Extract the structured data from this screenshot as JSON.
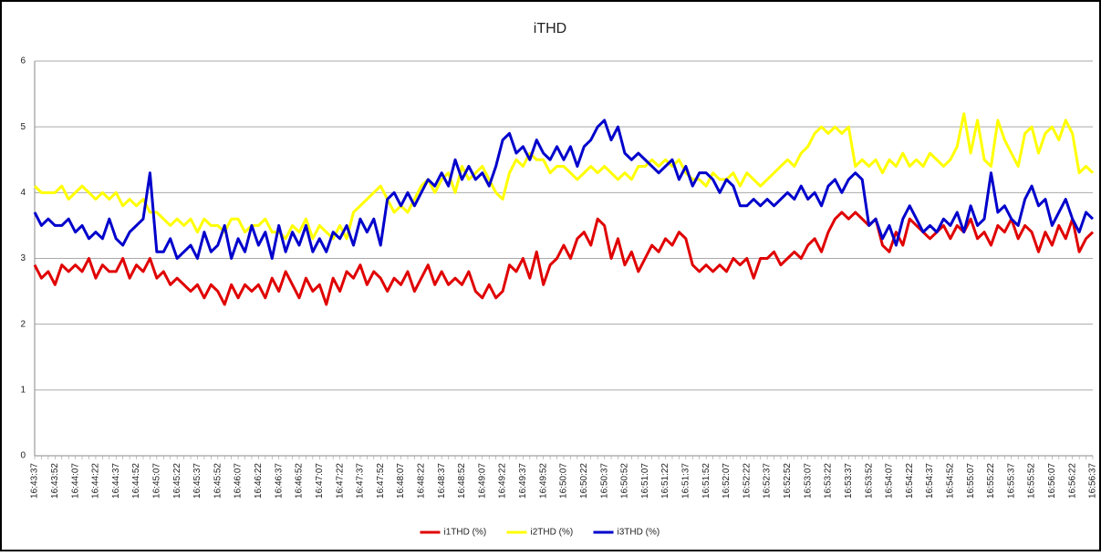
{
  "chart_data": {
    "type": "line",
    "title": "iTHD",
    "categories": [
      "16:43:37",
      null,
      null,
      "16:43:52",
      null,
      null,
      "16:44:07",
      null,
      null,
      "16:44:22",
      null,
      null,
      "16:44:37",
      null,
      null,
      "16:44:52",
      null,
      null,
      "16:45:07",
      null,
      null,
      "16:45:22",
      null,
      null,
      "16:45:37",
      null,
      null,
      "16:45:52",
      null,
      null,
      "16:46:07",
      null,
      null,
      "16:46:22",
      null,
      null,
      "16:46:37",
      null,
      null,
      "16:46:52",
      null,
      null,
      "16:47:07",
      null,
      null,
      "16:47:22",
      null,
      null,
      "16:47:37",
      null,
      null,
      "16:47:52",
      null,
      null,
      "16:48:07",
      null,
      null,
      "16:48:22",
      null,
      null,
      "16:48:37",
      null,
      null,
      "16:48:52",
      null,
      null,
      "16:49:07",
      null,
      null,
      "16:49:22",
      null,
      null,
      "16:49:37",
      null,
      null,
      "16:49:52",
      null,
      null,
      "16:50:07",
      null,
      null,
      "16:50:22",
      null,
      null,
      "16:50:37",
      null,
      null,
      "16:50:52",
      null,
      null,
      "16:51:07",
      null,
      null,
      "16:51:22",
      null,
      null,
      "16:51:37",
      null,
      null,
      "16:51:52",
      null,
      null,
      "16:52:07",
      null,
      null,
      "16:52:22",
      null,
      null,
      "16:52:37",
      null,
      null,
      "16:52:52",
      null,
      null,
      "16:53:07",
      null,
      null,
      "16:53:22",
      null,
      null,
      "16:53:37",
      null,
      null,
      "16:53:52",
      null,
      null,
      "16:54:07",
      null,
      null,
      "16:54:22",
      null,
      null,
      "16:54:37",
      null,
      null,
      "16:54:52",
      null,
      null,
      "16:55:07",
      null,
      null,
      "16:55:22",
      null,
      null,
      "16:55:37",
      null,
      null,
      "16:55:52",
      null,
      null,
      "16:56:07",
      null,
      null,
      "16:56:22",
      null,
      null,
      "16:56:37"
    ],
    "series": [
      {
        "name": "i1THD (%)",
        "color": "#e00000",
        "values": [
          2.9,
          2.7,
          2.8,
          2.6,
          2.9,
          2.8,
          2.9,
          2.8,
          3.0,
          2.7,
          2.9,
          2.8,
          2.8,
          3.0,
          2.7,
          2.9,
          2.8,
          3.0,
          2.7,
          2.8,
          2.6,
          2.7,
          2.6,
          2.5,
          2.6,
          2.4,
          2.6,
          2.5,
          2.3,
          2.6,
          2.4,
          2.6,
          2.5,
          2.6,
          2.4,
          2.7,
          2.5,
          2.8,
          2.6,
          2.4,
          2.7,
          2.5,
          2.6,
          2.3,
          2.7,
          2.5,
          2.8,
          2.7,
          2.9,
          2.6,
          2.8,
          2.7,
          2.5,
          2.7,
          2.6,
          2.8,
          2.5,
          2.7,
          2.9,
          2.6,
          2.8,
          2.6,
          2.7,
          2.6,
          2.8,
          2.5,
          2.4,
          2.6,
          2.4,
          2.5,
          2.9,
          2.8,
          3.0,
          2.7,
          3.1,
          2.6,
          2.9,
          3.0,
          3.2,
          3.0,
          3.3,
          3.4,
          3.2,
          3.6,
          3.5,
          3.0,
          3.3,
          2.9,
          3.1,
          2.8,
          3.0,
          3.2,
          3.1,
          3.3,
          3.2,
          3.4,
          3.3,
          2.9,
          2.8,
          2.9,
          2.8,
          2.9,
          2.8,
          3.0,
          2.9,
          3.0,
          2.7,
          3.0,
          3.0,
          3.1,
          2.9,
          3.0,
          3.1,
          3.0,
          3.2,
          3.3,
          3.1,
          3.4,
          3.6,
          3.7,
          3.6,
          3.7,
          3.6,
          3.5,
          3.6,
          3.2,
          3.1,
          3.4,
          3.2,
          3.6,
          3.5,
          3.4,
          3.3,
          3.4,
          3.5,
          3.3,
          3.5,
          3.4,
          3.6,
          3.3,
          3.4,
          3.2,
          3.5,
          3.4,
          3.6,
          3.3,
          3.5,
          3.4,
          3.1,
          3.4,
          3.2,
          3.5,
          3.3,
          3.6,
          3.1,
          3.3,
          3.4
        ]
      },
      {
        "name": "i2THD (%)",
        "color": "#ffff00",
        "values": [
          4.1,
          4.0,
          4.0,
          4.0,
          4.1,
          3.9,
          4.0,
          4.1,
          4.0,
          3.9,
          4.0,
          3.9,
          4.0,
          3.8,
          3.9,
          3.8,
          3.9,
          3.7,
          3.7,
          3.6,
          3.5,
          3.6,
          3.5,
          3.6,
          3.4,
          3.6,
          3.5,
          3.5,
          3.4,
          3.6,
          3.6,
          3.4,
          3.5,
          3.5,
          3.6,
          3.4,
          3.4,
          3.3,
          3.5,
          3.4,
          3.6,
          3.3,
          3.5,
          3.4,
          3.3,
          3.5,
          3.3,
          3.7,
          3.8,
          3.9,
          4.0,
          4.1,
          3.9,
          3.7,
          3.8,
          3.7,
          3.9,
          4.1,
          4.2,
          4.0,
          4.2,
          4.3,
          4.0,
          4.4,
          4.2,
          4.3,
          4.4,
          4.2,
          4.0,
          3.9,
          4.3,
          4.5,
          4.4,
          4.6,
          4.5,
          4.5,
          4.3,
          4.4,
          4.4,
          4.3,
          4.2,
          4.3,
          4.4,
          4.3,
          4.4,
          4.3,
          4.2,
          4.3,
          4.2,
          4.4,
          4.4,
          4.5,
          4.4,
          4.5,
          4.4,
          4.5,
          4.3,
          4.2,
          4.2,
          4.1,
          4.3,
          4.2,
          4.2,
          4.3,
          4.1,
          4.3,
          4.2,
          4.1,
          4.2,
          4.3,
          4.4,
          4.5,
          4.4,
          4.6,
          4.7,
          4.9,
          5.0,
          4.9,
          5.0,
          4.9,
          5.0,
          4.4,
          4.5,
          4.4,
          4.5,
          4.3,
          4.5,
          4.4,
          4.6,
          4.4,
          4.5,
          4.4,
          4.6,
          4.5,
          4.4,
          4.5,
          4.7,
          5.2,
          4.6,
          5.1,
          4.5,
          4.4,
          5.1,
          4.8,
          4.6,
          4.4,
          4.9,
          5.0,
          4.6,
          4.9,
          5.0,
          4.8,
          5.1,
          4.9,
          4.3,
          4.4,
          4.3
        ]
      },
      {
        "name": "i3THD (%)",
        "color": "#0000cc",
        "values": [
          3.7,
          3.5,
          3.6,
          3.5,
          3.5,
          3.6,
          3.4,
          3.5,
          3.3,
          3.4,
          3.3,
          3.6,
          3.3,
          3.2,
          3.4,
          3.5,
          3.6,
          4.3,
          3.1,
          3.1,
          3.3,
          3.0,
          3.1,
          3.2,
          3.0,
          3.4,
          3.1,
          3.2,
          3.5,
          3.0,
          3.3,
          3.1,
          3.5,
          3.2,
          3.4,
          3.0,
          3.5,
          3.1,
          3.4,
          3.2,
          3.5,
          3.1,
          3.3,
          3.1,
          3.4,
          3.3,
          3.5,
          3.2,
          3.6,
          3.4,
          3.6,
          3.2,
          3.9,
          4.0,
          3.8,
          4.0,
          3.8,
          4.0,
          4.2,
          4.1,
          4.3,
          4.1,
          4.5,
          4.2,
          4.4,
          4.2,
          4.3,
          4.1,
          4.4,
          4.8,
          4.9,
          4.6,
          4.7,
          4.5,
          4.8,
          4.6,
          4.5,
          4.7,
          4.5,
          4.7,
          4.4,
          4.7,
          4.8,
          5.0,
          5.1,
          4.8,
          5.0,
          4.6,
          4.5,
          4.6,
          4.5,
          4.4,
          4.3,
          4.4,
          4.5,
          4.2,
          4.4,
          4.1,
          4.3,
          4.3,
          4.2,
          4.0,
          4.2,
          4.1,
          3.8,
          3.8,
          3.9,
          3.8,
          3.9,
          3.8,
          3.9,
          4.0,
          3.9,
          4.1,
          3.9,
          4.0,
          3.8,
          4.1,
          4.2,
          4.0,
          4.2,
          4.3,
          4.2,
          3.5,
          3.6,
          3.3,
          3.5,
          3.2,
          3.6,
          3.8,
          3.6,
          3.4,
          3.5,
          3.4,
          3.6,
          3.5,
          3.7,
          3.4,
          3.8,
          3.5,
          3.6,
          4.3,
          3.7,
          3.8,
          3.6,
          3.5,
          3.9,
          4.1,
          3.8,
          3.9,
          3.5,
          3.7,
          3.9,
          3.6,
          3.4,
          3.7,
          3.6
        ]
      }
    ],
    "ylim": [
      0,
      6
    ],
    "yticks": [
      0,
      1,
      2,
      3,
      4,
      5,
      6
    ],
    "grid": true,
    "legend": "bottom"
  }
}
